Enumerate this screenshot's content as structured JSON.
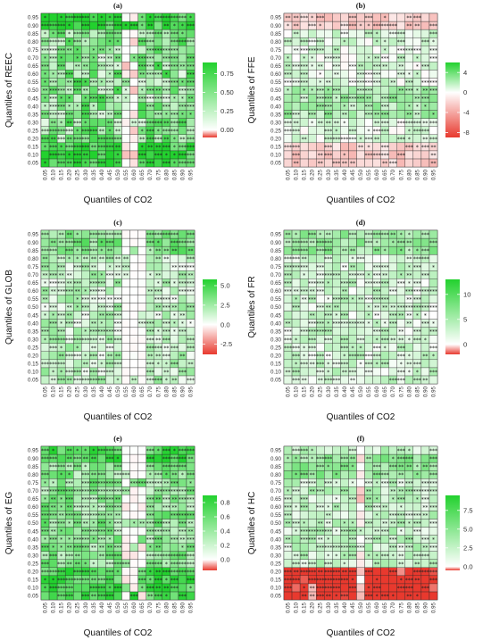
{
  "figure": {
    "quantiles": [
      "0.05",
      "0.10",
      "0.15",
      "0.20",
      "0.25",
      "0.30",
      "0.35",
      "0.40",
      "0.45",
      "0.50",
      "0.55",
      "0.60",
      "0.65",
      "0.70",
      "0.75",
      "0.80",
      "0.85",
      "0.90",
      "0.95"
    ],
    "colors": {
      "neg": "#e8392e",
      "zero": "#ffffff",
      "pos": "#22d12e",
      "grid": "#222222"
    }
  },
  "chart_data": [
    {
      "type": "heatmap",
      "panel": "(a)",
      "xlabel": "Quantiles of CO2",
      "ylabel": "Quantiles of REEC",
      "legend_ticks": [
        "0.75",
        "0.50",
        "0.25",
        "0.00"
      ],
      "zlim": [
        -0.1,
        0.9
      ],
      "pattern": {
        "base": 0.45,
        "noise": 0.35,
        "blank_cols": [
          10,
          11
        ],
        "hot_rows": [
          0,
          1,
          2,
          17,
          18
        ],
        "cold_rows": [],
        "sig_density": 0.82
      }
    },
    {
      "type": "heatmap",
      "panel": "(b)",
      "xlabel": "Quantiles of CO2",
      "ylabel": "Quantiles of FFE",
      "legend_ticks": [
        "4",
        "0",
        "-4",
        "-8"
      ],
      "zlim": [
        -9,
        6
      ],
      "pattern": {
        "base": 0.8,
        "noise": 1.2,
        "blank_cols": [],
        "hot_rows": [
          6,
          7,
          8,
          9
        ],
        "cold_rows": [
          0,
          1,
          2,
          17,
          18
        ],
        "sig_density": 0.55
      }
    },
    {
      "type": "heatmap",
      "panel": "(c)",
      "xlabel": "Quantiles of CO2",
      "ylabel": "Quantiles of GLOB",
      "legend_ticks": [
        "5.0",
        "2.5",
        "0.0",
        "-2.5"
      ],
      "zlim": [
        -3.8,
        5.8
      ],
      "pattern": {
        "base": 1.6,
        "noise": 1.4,
        "blank_cols": [
          10,
          11,
          12
        ],
        "hot_rows": [
          16,
          17,
          18
        ],
        "cold_rows": [],
        "sig_density": 0.72
      }
    },
    {
      "type": "heatmap",
      "panel": "(d)",
      "xlabel": "Quantiles of CO2",
      "ylabel": "Quantiles of FR",
      "legend_ticks": [
        "10",
        "5",
        "0"
      ],
      "zlim": [
        -2,
        13
      ],
      "pattern": {
        "base": 2.5,
        "noise": 2.5,
        "blank_cols": [],
        "hot_rows": [
          16,
          17,
          18
        ],
        "cold_rows": [],
        "sig_density": 0.6
      }
    },
    {
      "type": "heatmap",
      "panel": "(e)",
      "xlabel": "Quantiles of CO2",
      "ylabel": "Quantiles of EG",
      "legend_ticks": [
        "0.8",
        "0.6",
        "0.4",
        "0.2",
        "0.0"
      ],
      "zlim": [
        -0.15,
        0.9
      ],
      "pattern": {
        "base": 0.45,
        "noise": 0.25,
        "blank_cols": [
          10,
          11,
          12
        ],
        "hot_rows": [
          0,
          1,
          2,
          3,
          17,
          18
        ],
        "cold_rows": [],
        "sig_density": 0.85
      }
    },
    {
      "type": "heatmap",
      "panel": "(f)",
      "xlabel": "Quantiles of CO2",
      "ylabel": "Quantiles of HC",
      "legend_ticks": [
        "7.5",
        "5.0",
        "2.5",
        "0.0"
      ],
      "zlim": [
        -0.5,
        9.5
      ],
      "pattern": {
        "base": 2.4,
        "noise": 1.8,
        "blank_cols": [
          9
        ],
        "hot_rows": [
          15,
          16,
          17
        ],
        "cold_rows": [
          0,
          1,
          2,
          3
        ],
        "sig_density": 0.62
      }
    }
  ]
}
